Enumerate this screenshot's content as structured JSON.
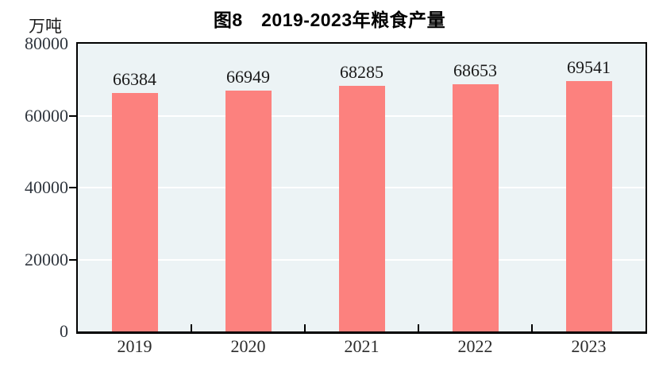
{
  "chart_data": {
    "type": "bar",
    "title": "图8　2019-2023年粮食产量",
    "ylabel": "万吨",
    "xlabel": "",
    "categories": [
      "2019",
      "2020",
      "2021",
      "2022",
      "2023"
    ],
    "values": [
      66384,
      66949,
      68285,
      68653,
      69541
    ],
    "ylim": [
      0,
      80000
    ],
    "yticks": [
      0,
      20000,
      40000,
      60000,
      80000
    ],
    "legend": "none",
    "grid": true,
    "colors": {
      "bar_fill": "#FC817E",
      "plot_background": "#ECF3F5",
      "gridline": "#FFFFFF",
      "frame": "#000000",
      "title_text": "#000000",
      "label_text": "#1a1a1a"
    }
  }
}
